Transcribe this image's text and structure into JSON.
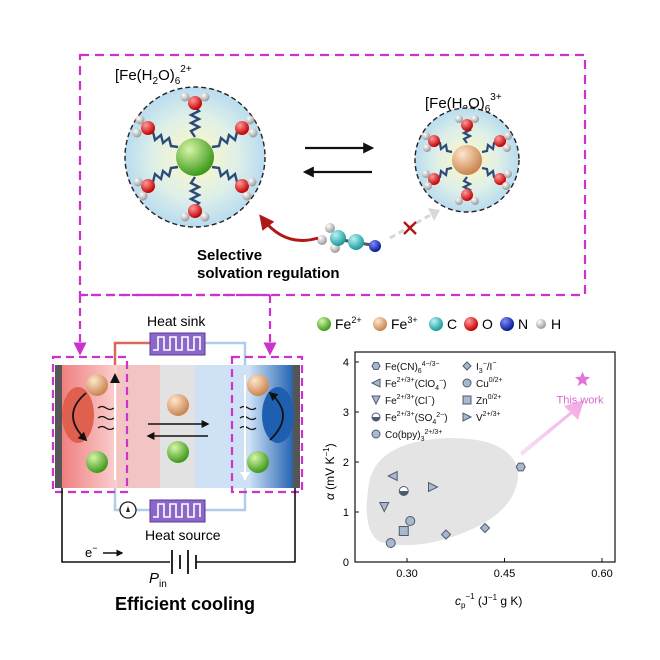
{
  "top_panel": {
    "left_complex": {
      "base": "[Fe(H",
      "sub": "2",
      "mid": "O)",
      "sub2": "6",
      "charge": "2+"
    },
    "right_complex": {
      "base": "[Fe(H",
      "sub": "2",
      "mid": "O)",
      "sub2": "6",
      "charge": "3+"
    },
    "caption_line1": "Selective",
    "caption_line2": "solvation  regulation"
  },
  "legend": [
    {
      "label": "Fe",
      "sup": "2+",
      "color": "#6abf3a"
    },
    {
      "label": "Fe",
      "sup": "3+",
      "color": "#e0a070"
    },
    {
      "label": "C",
      "sup": "",
      "color": "#3cc4c6"
    },
    {
      "label": "O",
      "sup": "",
      "color": "#e02020"
    },
    {
      "label": "N",
      "sup": "",
      "color": "#1a2fb0"
    },
    {
      "label": "H",
      "sup": "",
      "color": "#dddddd"
    }
  ],
  "cell": {
    "heat_sink": "Heat sink",
    "heat_source": "Heat source",
    "electron": "e",
    "electron_sup": "−",
    "power": "P",
    "power_sub": "in",
    "title": "Efficient cooling"
  },
  "chart_data": {
    "type": "scatter",
    "xlabel_main": "c",
    "xlabel_sub": "p",
    "xlabel_sup": "−1",
    "xlabel_unit": " (J",
    "xlabel_unit_sup": "−1",
    "xlabel_unit_end": " g K)",
    "ylabel_main": "α",
    "ylabel_unit": " (mV K",
    "ylabel_unit_sup": "−1",
    "ylabel_unit_end": ")",
    "xlim": [
      0.22,
      0.62
    ],
    "ylim": [
      0,
      4.2
    ],
    "xticks": [
      "0.30",
      "0.45",
      "0.60"
    ],
    "yticks": [
      "0",
      "1",
      "2",
      "3",
      "4"
    ],
    "legend_left": [
      {
        "text": "Fe(CN)",
        "sub": "6",
        "sup": "4−/3−"
      },
      {
        "text": "Fe",
        "sup": "2+/3+",
        "tail": "(ClO",
        "tsub": "4",
        "tsup": "−",
        "end": ")"
      },
      {
        "text": "Fe",
        "sup": "2+/3+",
        "tail": "(Cl",
        "tsup": "−",
        "end": ")"
      },
      {
        "text": "Fe",
        "sup": "2+/3+",
        "tail": "(SO",
        "tsub": "4",
        "tsup": "2−",
        "end": ")"
      },
      {
        "text": "Co(bpy)",
        "sub": "3",
        "sup": "2+/3+"
      }
    ],
    "legend_right": [
      {
        "text": "I",
        "sub": "3",
        "sup": "−",
        "tail": "/I",
        "tsup": "−"
      },
      {
        "text": "Cu",
        "sup": "0/2+"
      },
      {
        "text": "Zn",
        "sup": "0/2+"
      },
      {
        "text": "V",
        "sup": "2+/3+"
      }
    ],
    "points": [
      {
        "x": 0.265,
        "y": 1.1,
        "m": "tri-down"
      },
      {
        "x": 0.278,
        "y": 1.72,
        "m": "tri-left"
      },
      {
        "x": 0.275,
        "y": 0.38,
        "m": "circ"
      },
      {
        "x": 0.295,
        "y": 1.42,
        "m": "half"
      },
      {
        "x": 0.295,
        "y": 0.62,
        "m": "square"
      },
      {
        "x": 0.305,
        "y": 0.82,
        "m": "circ"
      },
      {
        "x": 0.34,
        "y": 1.5,
        "m": "tri-right"
      },
      {
        "x": 0.36,
        "y": 0.55,
        "m": "diamond"
      },
      {
        "x": 0.42,
        "y": 0.68,
        "m": "diamond"
      },
      {
        "x": 0.475,
        "y": 1.9,
        "m": "hex"
      }
    ],
    "this_work": {
      "x": 0.57,
      "y": 3.65,
      "label": "This work"
    }
  }
}
